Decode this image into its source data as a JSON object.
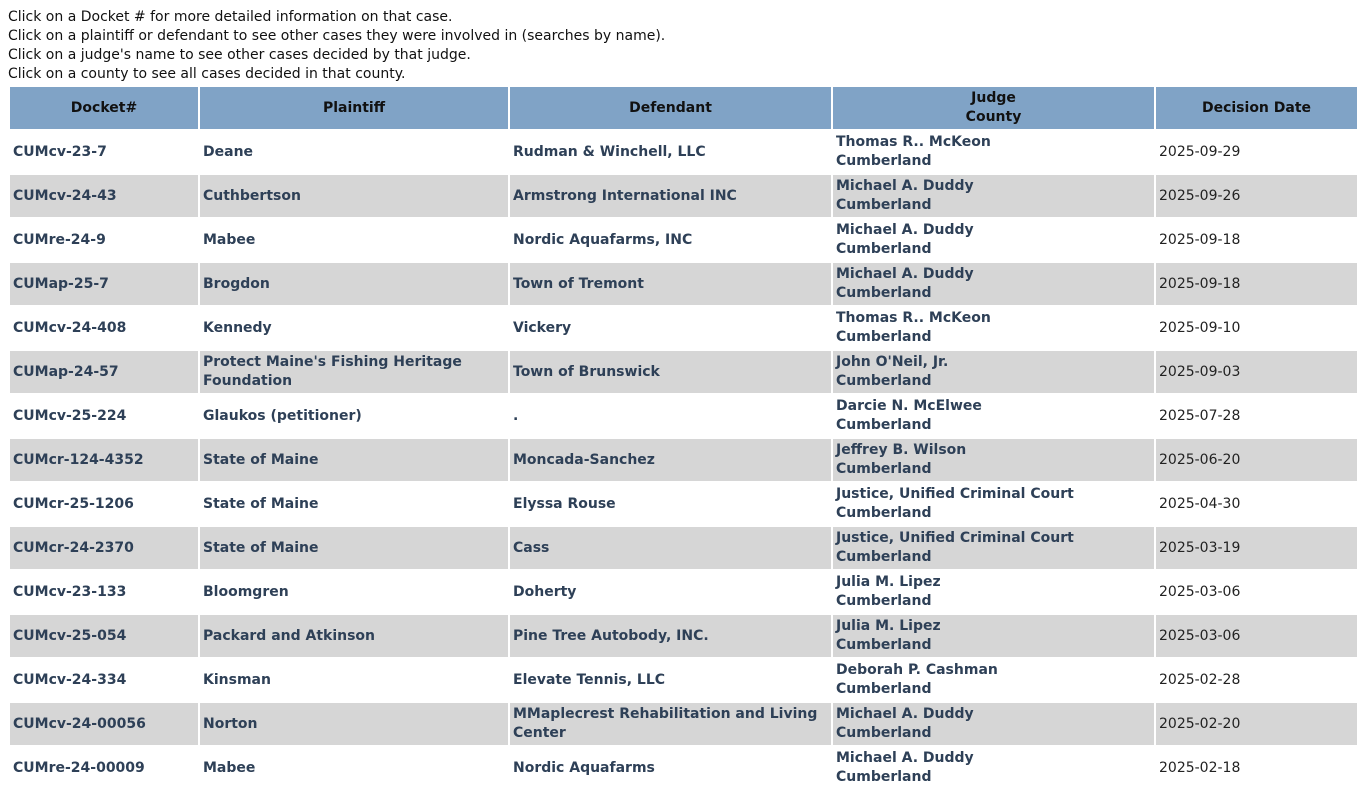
{
  "intro": [
    "Click on a Docket # for more detailed information on that case.",
    "Click on a plaintiff or defendant to see other cases they were involved in (searches by name).",
    "Click on a judge's name to see other cases decided by that judge.",
    "Click on a county to see all cases decided in that county."
  ],
  "headers": {
    "docket": "Docket#",
    "plaintiff": "Plaintiff",
    "defendant": "Defendant",
    "judge": "Judge",
    "county": "County",
    "date": "Decision Date"
  },
  "rows": [
    {
      "docket": "CUMcv-23-7",
      "plaintiff": "Deane",
      "defendant": "Rudman & Winchell, LLC",
      "judge": "Thomas R.. McKeon",
      "county": "Cumberland",
      "date": "2025-09-29"
    },
    {
      "docket": "CUMcv-24-43",
      "plaintiff": "Cuthbertson",
      "defendant": "Armstrong International INC",
      "judge": "Michael A. Duddy",
      "county": "Cumberland",
      "date": "2025-09-26"
    },
    {
      "docket": "CUMre-24-9",
      "plaintiff": "Mabee",
      "defendant": "Nordic Aquafarms, INC",
      "judge": "Michael A. Duddy",
      "county": "Cumberland",
      "date": "2025-09-18"
    },
    {
      "docket": "CUMap-25-7",
      "plaintiff": "Brogdon",
      "defendant": "Town of Tremont",
      "judge": "Michael A. Duddy",
      "county": "Cumberland",
      "date": "2025-09-18"
    },
    {
      "docket": "CUMcv-24-408",
      "plaintiff": "Kennedy",
      "defendant": "Vickery",
      "judge": "Thomas R.. McKeon",
      "county": "Cumberland",
      "date": "2025-09-10"
    },
    {
      "docket": "CUMap-24-57",
      "plaintiff": "Protect Maine's Fishing Heritage Foundation",
      "defendant": "Town of Brunswick",
      "judge": "John O'Neil, Jr.",
      "county": "Cumberland",
      "date": "2025-09-03"
    },
    {
      "docket": "CUMcv-25-224",
      "plaintiff": "Glaukos (petitioner)",
      "defendant": ".",
      "judge": "Darcie N. McElwee",
      "county": "Cumberland",
      "date": "2025-07-28"
    },
    {
      "docket": "CUMcr-124-4352",
      "plaintiff": "State of Maine",
      "defendant": "Moncada-Sanchez",
      "judge": "Jeffrey B. Wilson",
      "county": "Cumberland",
      "date": "2025-06-20"
    },
    {
      "docket": "CUMcr-25-1206",
      "plaintiff": "State of Maine",
      "defendant": "Elyssa Rouse",
      "judge": "Justice, Unified Criminal Court",
      "county": "Cumberland",
      "date": "2025-04-30"
    },
    {
      "docket": "CUMcr-24-2370",
      "plaintiff": "State of Maine",
      "defendant": "Cass",
      "judge": "Justice, Unified Criminal Court",
      "county": "Cumberland",
      "date": "2025-03-19"
    },
    {
      "docket": "CUMcv-23-133",
      "plaintiff": "Bloomgren",
      "defendant": "Doherty",
      "judge": "Julia M. Lipez",
      "county": "Cumberland",
      "date": "2025-03-06"
    },
    {
      "docket": "CUMcv-25-054",
      "plaintiff": "Packard and Atkinson",
      "defendant": "Pine Tree Autobody, INC.",
      "judge": "Julia M. Lipez",
      "county": "Cumberland",
      "date": "2025-03-06"
    },
    {
      "docket": "CUMcv-24-334",
      "plaintiff": "Kinsman",
      "defendant": "Elevate Tennis, LLC",
      "judge": "Deborah P. Cashman",
      "county": "Cumberland",
      "date": "2025-02-28"
    },
    {
      "docket": "CUMcv-24-00056",
      "plaintiff": "Norton",
      "defendant": "MMaplecrest Rehabilitation and Living Center",
      "judge": "Michael A. Duddy",
      "county": "Cumberland",
      "date": "2025-02-20"
    },
    {
      "docket": "CUMre-24-00009",
      "plaintiff": "Mabee",
      "defendant": "Nordic Aquafarms",
      "judge": "Michael A. Duddy",
      "county": "Cumberland",
      "date": "2025-02-18"
    }
  ]
}
